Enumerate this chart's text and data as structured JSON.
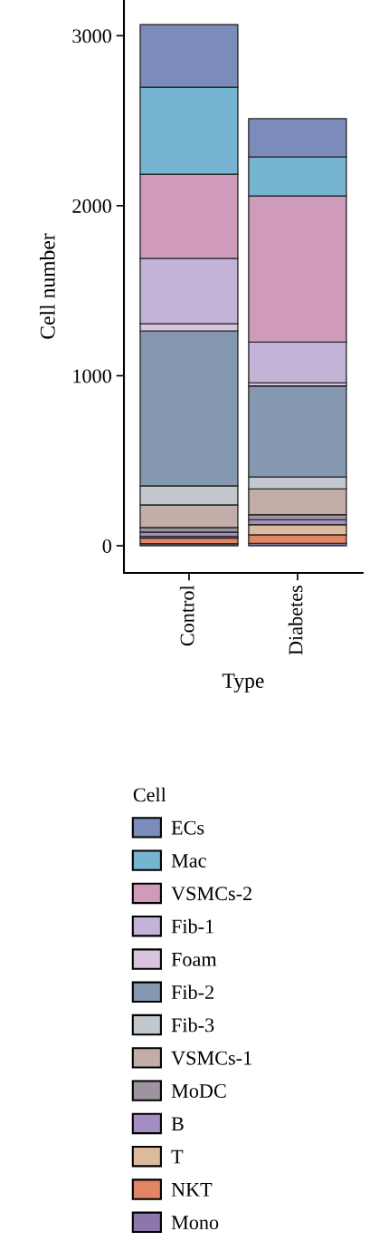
{
  "chart_data": {
    "type": "bar",
    "stacked": true,
    "xlabel": "Type",
    "ylabel": "Cell number",
    "legend_title": "Cell",
    "legend": "bottom",
    "categories": [
      "Control",
      "Diabetes"
    ],
    "ylim": [
      -160,
      3210
    ],
    "yticks": [
      0,
      1000,
      2000,
      3000
    ],
    "grid": false,
    "series": [
      {
        "name": "Mono",
        "color": "#8c76aa",
        "values": [
          12,
          14
        ]
      },
      {
        "name": "NKT",
        "color": "#e08666",
        "values": [
          33,
          50
        ]
      },
      {
        "name": "T",
        "color": "#dcbb9c",
        "values": [
          10,
          60
        ]
      },
      {
        "name": "B",
        "color": "#a48dc0",
        "values": [
          25,
          29
        ]
      },
      {
        "name": "MoDC",
        "color": "#9e949f",
        "values": [
          27,
          30
        ]
      },
      {
        "name": "VSMCs-1",
        "color": "#c2ada8",
        "values": [
          133,
          151
        ]
      },
      {
        "name": "Fib-3",
        "color": "#c2c8cc",
        "values": [
          112,
          71
        ]
      },
      {
        "name": "Fib-2",
        "color": "#8499b0",
        "values": [
          911,
          535
        ]
      },
      {
        "name": "Foam",
        "color": "#d8c4dc",
        "values": [
          43,
          18
        ]
      },
      {
        "name": "Fib-1",
        "color": "#c3b3d6",
        "values": [
          384,
          240
        ]
      },
      {
        "name": "VSMCs-2",
        "color": "#d09aba",
        "values": [
          495,
          859
        ]
      },
      {
        "name": "Mac",
        "color": "#76b4d2",
        "values": [
          512,
          230
        ]
      },
      {
        "name": "ECs",
        "color": "#7b8cba",
        "values": [
          368,
          225
        ]
      }
    ]
  }
}
